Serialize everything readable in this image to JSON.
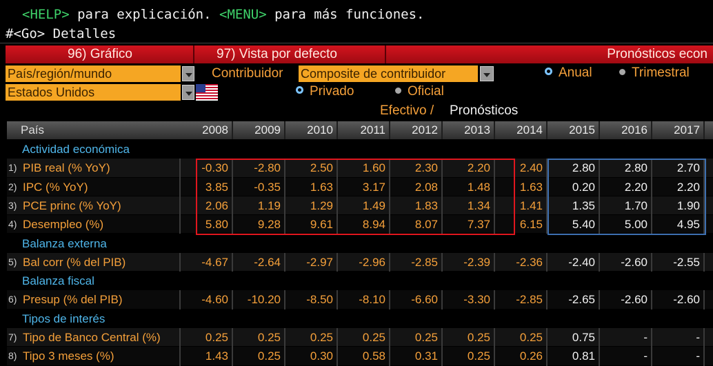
{
  "header": {
    "help_key": "<HELP>",
    "help_text": "para explicación.",
    "menu_key": "<MENU>",
    "menu_text": "para más funciones.",
    "command": "#<Go> Detalles"
  },
  "toolbar": {
    "buttons": [
      "96) Gráfico",
      "97) Vista por defecto"
    ],
    "title": "Pronósticos econ"
  },
  "controls": {
    "region_select": "País/región/mundo",
    "country_select": "Estados Unidos",
    "contributor_label": "Contribuidor",
    "contributor_select": "Composite de contribuidor",
    "period_options": [
      "Anual",
      "Trimestral"
    ],
    "source_options": [
      "Privado",
      "Oficial"
    ]
  },
  "legend": {
    "actual": "Efectivo /",
    "forecast": "Pronósticos"
  },
  "table": {
    "header": "País",
    "years": [
      "2008",
      "2009",
      "2010",
      "2011",
      "2012",
      "2013",
      "2014",
      "2015",
      "2016",
      "2017"
    ],
    "rows": [
      {
        "section": "Actividad económica"
      },
      {
        "num": "1)",
        "label": "PIB real (% YoY)",
        "values": [
          "-0.30",
          "-2.80",
          "2.50",
          "1.60",
          "2.30",
          "2.20",
          "2.40",
          "2.80",
          "2.80",
          "2.70"
        ]
      },
      {
        "num": "2)",
        "label": "IPC (% YoY)",
        "values": [
          "3.85",
          "-0.35",
          "1.63",
          "3.17",
          "2.08",
          "1.48",
          "1.63",
          "0.20",
          "2.20",
          "2.20"
        ]
      },
      {
        "num": "3)",
        "label": "PCE princ (% YoY)",
        "values": [
          "2.06",
          "1.19",
          "1.29",
          "1.49",
          "1.83",
          "1.34",
          "1.41",
          "1.35",
          "1.70",
          "1.90"
        ]
      },
      {
        "num": "4)",
        "label": "Desempleo (%)",
        "values": [
          "5.80",
          "9.28",
          "9.61",
          "8.94",
          "8.07",
          "7.37",
          "6.15",
          "5.40",
          "5.00",
          "4.95"
        ]
      },
      {
        "section": "Balanza externa"
      },
      {
        "num": "5)",
        "label": "Bal corr (% del PIB)",
        "values": [
          "-4.67",
          "-2.64",
          "-2.97",
          "-2.96",
          "-2.85",
          "-2.39",
          "-2.36",
          "-2.40",
          "-2.60",
          "-2.55"
        ]
      },
      {
        "section": "Balanza fiscal"
      },
      {
        "num": "6)",
        "label": "Presup (% del PIB)",
        "values": [
          "-4.60",
          "-10.20",
          "-8.50",
          "-8.10",
          "-6.60",
          "-3.30",
          "-2.85",
          "-2.65",
          "-2.60",
          "-2.60"
        ]
      },
      {
        "section": "Tipos de interés"
      },
      {
        "num": "7)",
        "label": "Tipo de Banco Central (%)",
        "values": [
          "0.25",
          "0.25",
          "0.25",
          "0.25",
          "0.25",
          "0.25",
          "0.25",
          "0.75",
          "-",
          "-"
        ]
      },
      {
        "num": "8)",
        "label": "Tipo 3 meses (%)",
        "values": [
          "1.43",
          "0.25",
          "0.30",
          "0.58",
          "0.31",
          "0.25",
          "0.26",
          "0.81",
          "-",
          "-"
        ]
      }
    ]
  }
}
